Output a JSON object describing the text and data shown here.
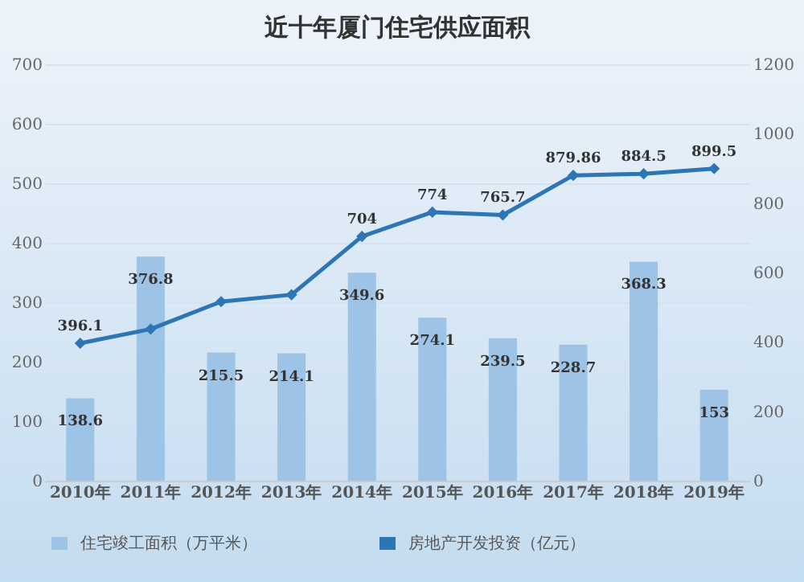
{
  "chart_data": {
    "type": "bar",
    "title": "近十年厦门住宅供应面积",
    "categories": [
      "2010年",
      "2011年",
      "2012年",
      "2013年",
      "2014年",
      "2015年",
      "2016年",
      "2017年",
      "2018年",
      "2019年"
    ],
    "series": [
      {
        "name": "住宅竣工面积（万平米）",
        "color": "#9dc3e6",
        "values": [
          138.6,
          376.8,
          215.5,
          214.1,
          349.6,
          274.1,
          239.5,
          228.7,
          368.3,
          153
        ],
        "value_labels": [
          "138.6",
          "376.8",
          "215.5",
          "214.1",
          "349.6",
          "274.1",
          "239.5",
          "228.7",
          "368.3",
          "153"
        ]
      },
      {
        "name": "房地产开发投资（亿元）",
        "type": "line",
        "axis": "y2",
        "color": "#2e75b6",
        "marker": "diamond",
        "values": [
          396.1,
          437,
          516,
          536,
          704,
          774,
          765.7,
          879.86,
          884.5,
          899.5
        ],
        "value_labels": [
          "396.1",
          null,
          null,
          null,
          "704",
          "774",
          "765.7",
          "879.86",
          "884.5",
          "899.5"
        ]
      }
    ],
    "ylim": [
      0,
      700
    ],
    "yticks": [
      0,
      100,
      200,
      300,
      400,
      500,
      600,
      700
    ],
    "y2lim": [
      0,
      1200
    ],
    "y2ticks": [
      0,
      200,
      400,
      600,
      800,
      1000,
      1200
    ],
    "grid": "y",
    "legend": "bottom"
  }
}
